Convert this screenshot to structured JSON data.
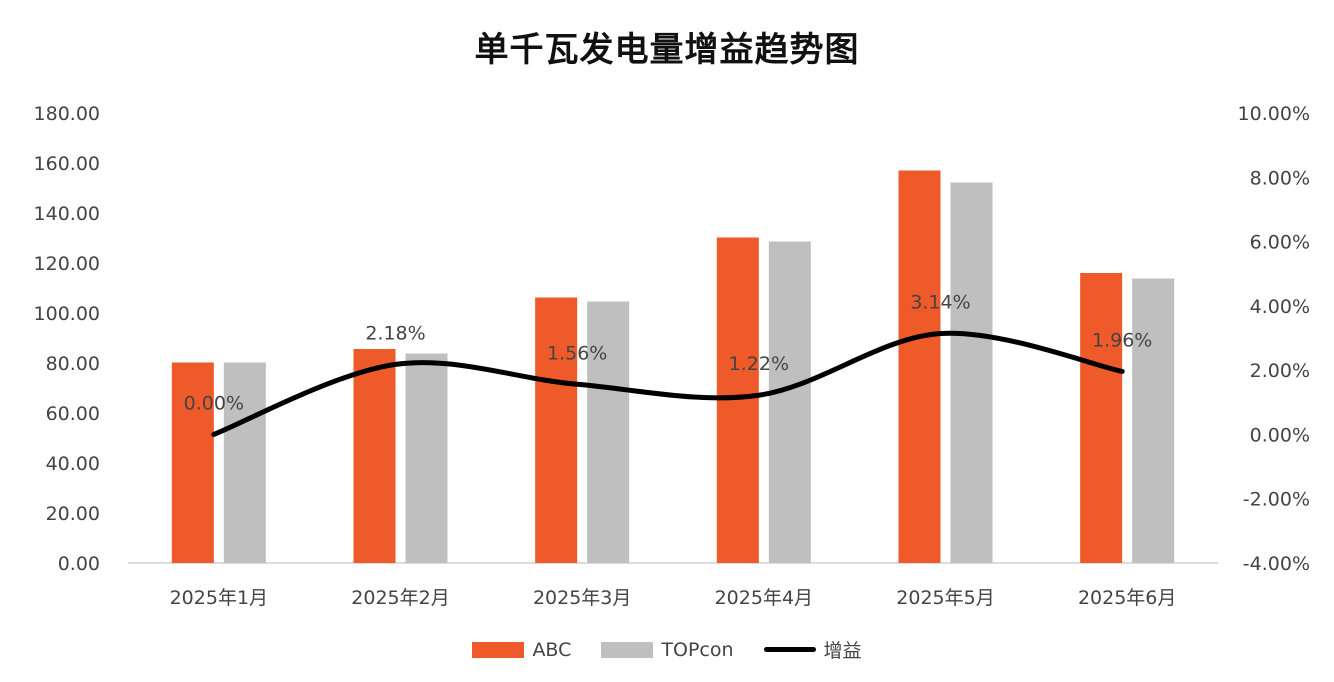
{
  "chart_data": {
    "type": "bar",
    "title": "单千瓦发电量增益趋势图",
    "categories": [
      "2025年1月",
      "2025年2月",
      "2025年3月",
      "2025年4月",
      "2025年5月",
      "2025年6月"
    ],
    "series": [
      {
        "name": "ABC",
        "kind": "bar",
        "axis": "left",
        "color": "#EE5A2A",
        "values": [
          80.2,
          85.6,
          106.2,
          130.2,
          157.0,
          116.0
        ]
      },
      {
        "name": "TOPcon",
        "kind": "bar",
        "axis": "left",
        "color": "#BFBFBF",
        "values": [
          80.2,
          83.8,
          104.6,
          128.6,
          152.2,
          113.8
        ]
      },
      {
        "name": "增益",
        "kind": "line",
        "axis": "right",
        "color": "#000000",
        "smooth": true,
        "values": [
          0.0,
          2.18,
          1.56,
          1.22,
          3.14,
          1.96
        ],
        "labels": [
          "0.00%",
          "2.18%",
          "1.56%",
          "1.22%",
          "3.14%",
          "1.96%"
        ]
      }
    ],
    "left_axis": {
      "ylim": [
        0,
        180
      ],
      "ticks": [
        "0.00",
        "20.00",
        "40.00",
        "60.00",
        "80.00",
        "100.00",
        "120.00",
        "140.00",
        "160.00",
        "180.00"
      ]
    },
    "right_axis": {
      "ylim": [
        -4,
        10
      ],
      "ticks": [
        "-4.00%",
        "-2.00%",
        "0.00%",
        "2.00%",
        "4.00%",
        "6.00%",
        "8.00%",
        "10.00%"
      ]
    },
    "grid": false,
    "legend_position": "bottom"
  }
}
